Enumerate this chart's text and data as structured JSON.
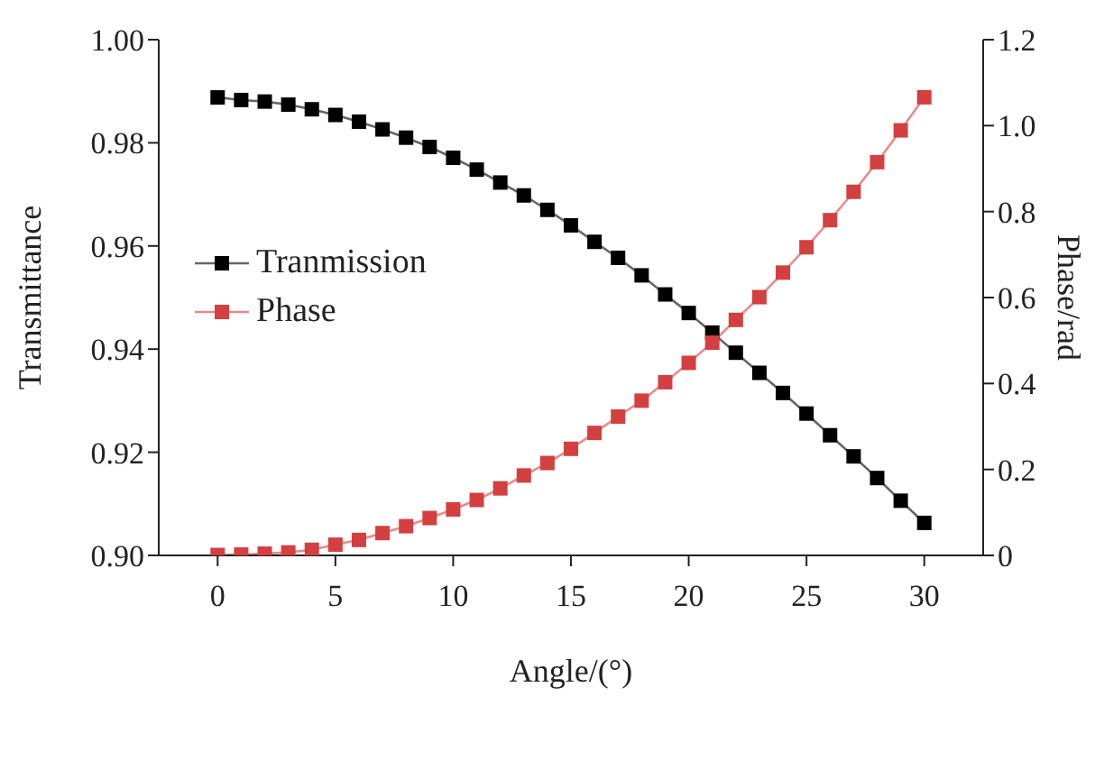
{
  "chart_data": {
    "type": "line",
    "xlabel": "Angle/(°)",
    "ylabel": "Transmittance",
    "y2label": "Phase/rad",
    "x": [
      0,
      1,
      2,
      3,
      4,
      5,
      6,
      7,
      8,
      9,
      10,
      11,
      12,
      13,
      14,
      15,
      16,
      17,
      18,
      19,
      20,
      21,
      22,
      23,
      24,
      25,
      26,
      27,
      28,
      29,
      30
    ],
    "series": [
      {
        "name": "Tranmission",
        "color": "#000000",
        "values": [
          0.9888,
          0.9883,
          0.988,
          0.9874,
          0.9865,
          0.9854,
          0.9841,
          0.9826,
          0.981,
          0.9792,
          0.9771,
          0.9748,
          0.9723,
          0.9698,
          0.967,
          0.964,
          0.9608,
          0.9577,
          0.9543,
          0.9506,
          0.947,
          0.9432,
          0.9393,
          0.9354,
          0.9315,
          0.9275,
          0.9233,
          0.9192,
          0.915,
          0.9106,
          0.9063
        ]
      },
      {
        "name": "Phase",
        "color": "#d43f3f",
        "axis": "y2",
        "values": [
          0.001,
          0.002,
          0.004,
          0.007,
          0.013,
          0.025,
          0.036,
          0.052,
          0.068,
          0.087,
          0.107,
          0.129,
          0.156,
          0.186,
          0.215,
          0.248,
          0.285,
          0.323,
          0.36,
          0.403,
          0.448,
          0.495,
          0.548,
          0.601,
          0.658,
          0.717,
          0.78,
          0.846,
          0.915,
          0.989,
          1.066
        ]
      }
    ],
    "xlim": [
      -2.5,
      32.5
    ],
    "xticks": [
      0,
      5,
      10,
      15,
      20,
      25,
      30
    ],
    "ylim": [
      0.9,
      1.0
    ],
    "yticks": [
      {
        "value": 0.9,
        "label": "0.90"
      },
      {
        "value": 0.92,
        "label": "0.92"
      },
      {
        "value": 0.94,
        "label": "0.94"
      },
      {
        "value": 0.96,
        "label": "0.96"
      },
      {
        "value": 0.98,
        "label": "0.98"
      },
      {
        "value": 1.0,
        "label": "1.00"
      }
    ],
    "y2lim": [
      0,
      1.2
    ],
    "y2ticks": [
      0,
      0.2,
      0.4,
      0.6,
      0.8,
      {
        "value": 1.0,
        "label": "1.0"
      },
      1.2
    ],
    "grid": false,
    "legend": "left",
    "marker": "square",
    "line_style": "solid"
  }
}
